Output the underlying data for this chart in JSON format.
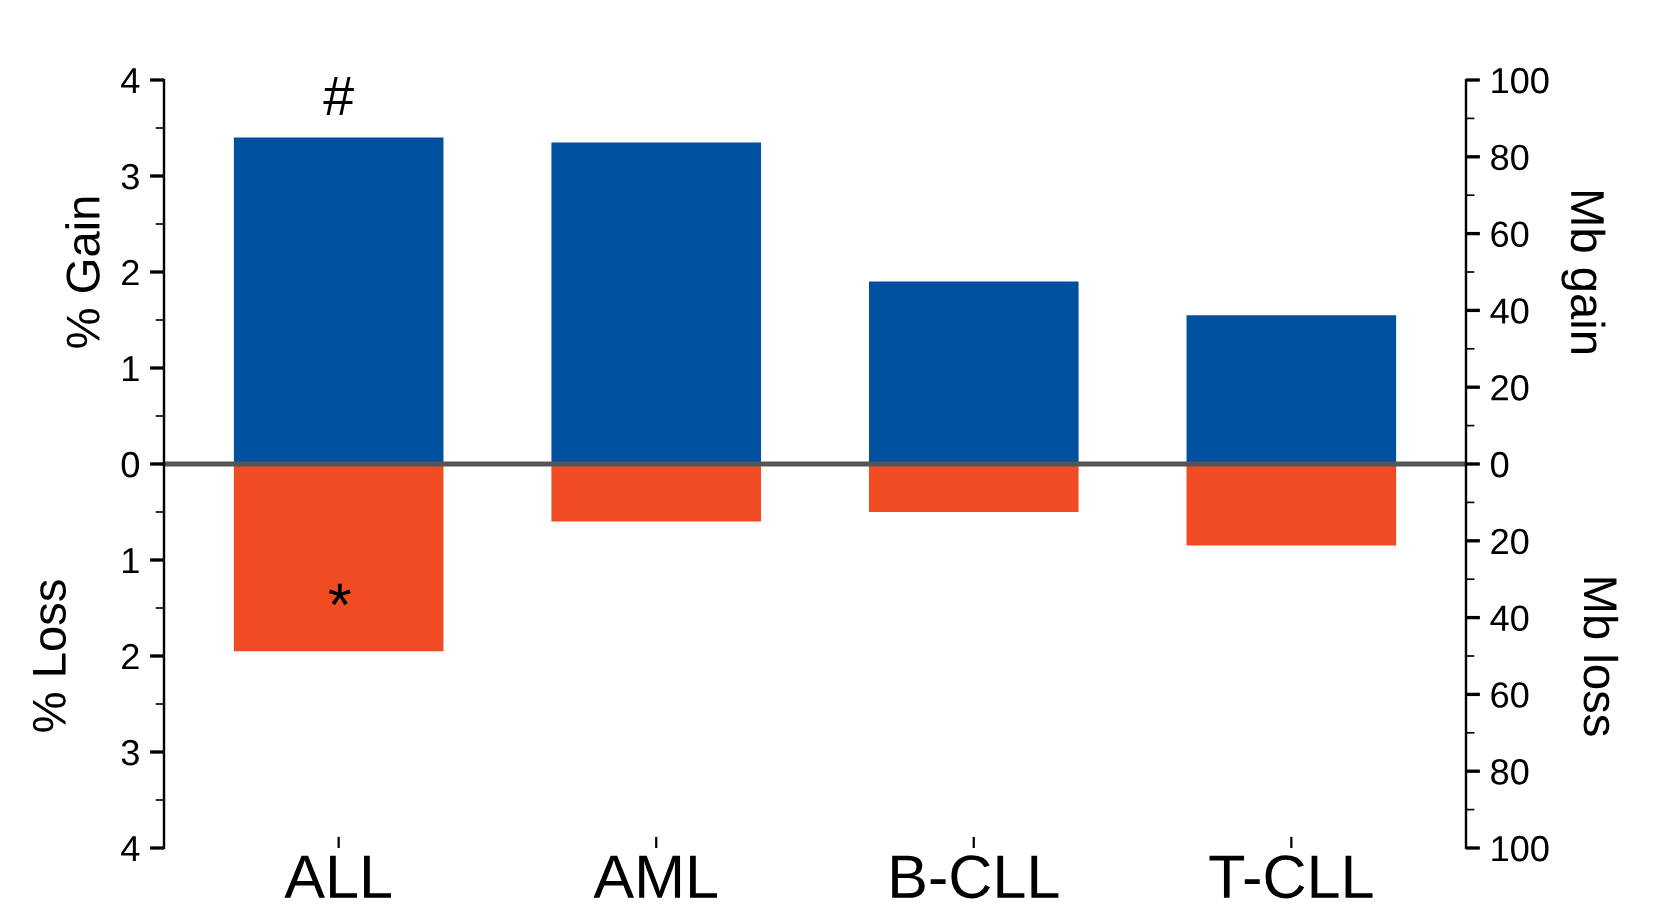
{
  "chart_data": {
    "type": "bar",
    "stacked": true,
    "categories": [
      "ALL",
      "AML",
      "B-CLL",
      "T-CLL"
    ],
    "series": [
      {
        "color": "#0050a0",
        "values": [
          3.4,
          3.35,
          1.9,
          1.55
        ]
      },
      {
        "color": "#f04b23",
        "values": [
          -1.95,
          -0.6,
          -0.5,
          -0.85
        ]
      }
    ],
    "ylabel": "% Gain",
    "y2label": "Mb gain",
    "annotations": [
      "% Loss",
      "Mb loss",
      {
        "text": "#",
        "x": "ALL",
        "y": 3.4
      },
      "*"
    ],
    "ylim": [
      -4,
      4
    ],
    "yticks": [
      {
        "value": -4,
        "label": "4"
      },
      {
        "value": -3,
        "label": "3"
      },
      {
        "value": -2,
        "label": "2"
      },
      {
        "value": -1,
        "label": "1"
      },
      0,
      1,
      2,
      3,
      4
    ],
    "y2lim": [
      -100,
      100
    ],
    "y2ticks": [
      {
        "value": -100,
        "label": "100"
      },
      {
        "value": -80,
        "label": "80"
      },
      {
        "value": -60,
        "label": "60"
      },
      {
        "value": -40,
        "label": "40"
      },
      {
        "value": -20,
        "label": "20"
      },
      0,
      20,
      40,
      60,
      80,
      100
    ],
    "ref_lines": [
      {
        "axis": "y",
        "value": 0,
        "color": "#555555"
      }
    ],
    "grid": false,
    "legend": false
  }
}
